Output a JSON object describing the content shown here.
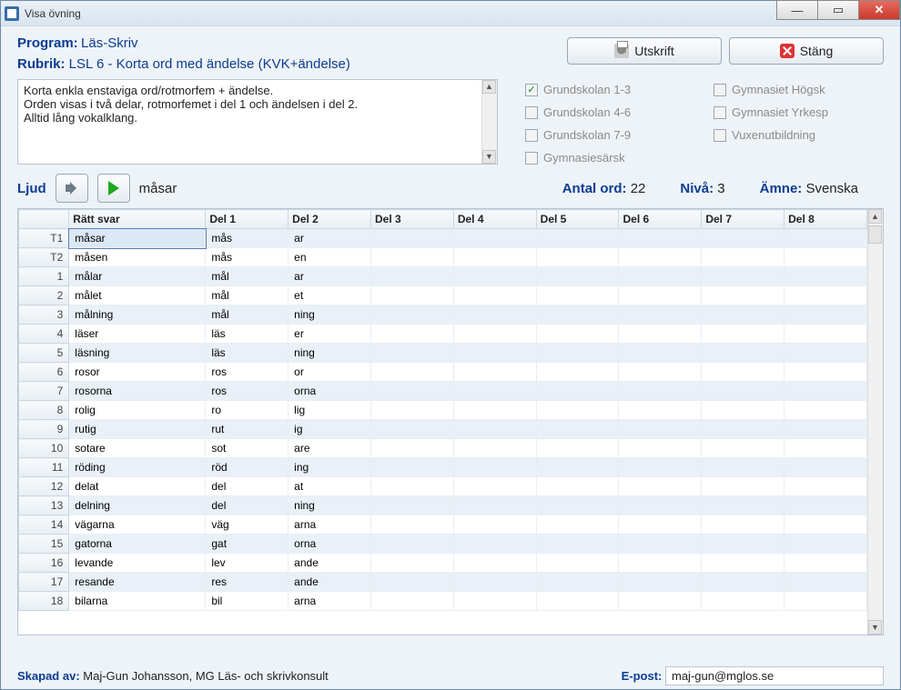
{
  "window": {
    "title": "Visa övning"
  },
  "header": {
    "program_label": "Program:",
    "program_value": "Läs-Skriv",
    "rubrik_label": "Rubrik:",
    "rubrik_value": "LSL 6 - Korta ord med ändelse  (KVK+ändelse)"
  },
  "buttons": {
    "utskrift": "Utskrift",
    "stang": "Stäng"
  },
  "description": "Korta enkla enstaviga ord/rotmorfem + ändelse.\nOrden visas i två delar, rotmorfemet i del 1 och ändelsen i del 2.\nAlltid lång vokalklang.",
  "checkboxes": [
    {
      "label": "Grundskolan 1-3",
      "checked": true
    },
    {
      "label": "Gymnasiet Högsk",
      "checked": false
    },
    {
      "label": "Grundskolan 4-6",
      "checked": false
    },
    {
      "label": "Gymnasiet Yrkesp",
      "checked": false
    },
    {
      "label": "Grundskolan 7-9",
      "checked": false
    },
    {
      "label": "Vuxenutbildning",
      "checked": false
    },
    {
      "label": "Gymnasiesärsk",
      "checked": false
    }
  ],
  "sound": {
    "label": "Ljud",
    "current": "måsar"
  },
  "stats": {
    "antal_label": "Antal ord:",
    "antal_value": "22",
    "niva_label": "Nivå:",
    "niva_value": "3",
    "amne_label": "Ämne:",
    "amne_value": "Svenska"
  },
  "table": {
    "columns": [
      "",
      "Rätt svar",
      "Del 1",
      "Del 2",
      "Del 3",
      "Del 4",
      "Del 5",
      "Del 6",
      "Del 7",
      "Del 8"
    ],
    "col_widths": [
      "28px",
      "76px",
      "46px",
      "46px",
      "46px",
      "46px",
      "46px",
      "46px",
      "46px",
      "46px"
    ],
    "rows": [
      {
        "num": "T1",
        "svar": "måsar",
        "del1": "mås",
        "del2": "ar",
        "selected": true
      },
      {
        "num": "T2",
        "svar": "måsen",
        "del1": "mås",
        "del2": "en"
      },
      {
        "num": "1",
        "svar": "målar",
        "del1": "mål",
        "del2": "ar"
      },
      {
        "num": "2",
        "svar": "målet",
        "del1": "mål",
        "del2": "et"
      },
      {
        "num": "3",
        "svar": "målning",
        "del1": "mål",
        "del2": "ning"
      },
      {
        "num": "4",
        "svar": "läser",
        "del1": "läs",
        "del2": "er"
      },
      {
        "num": "5",
        "svar": "läsning",
        "del1": "läs",
        "del2": "ning"
      },
      {
        "num": "6",
        "svar": "rosor",
        "del1": "ros",
        "del2": "or"
      },
      {
        "num": "7",
        "svar": "rosorna",
        "del1": "ros",
        "del2": "orna"
      },
      {
        "num": "8",
        "svar": "rolig",
        "del1": "ro",
        "del2": "lig"
      },
      {
        "num": "9",
        "svar": "rutig",
        "del1": "rut",
        "del2": "ig"
      },
      {
        "num": "10",
        "svar": "sotare",
        "del1": "sot",
        "del2": "are"
      },
      {
        "num": "11",
        "svar": "röding",
        "del1": "röd",
        "del2": "ing"
      },
      {
        "num": "12",
        "svar": "delat",
        "del1": "del",
        "del2": "at"
      },
      {
        "num": "13",
        "svar": "delning",
        "del1": "del",
        "del2": "ning"
      },
      {
        "num": "14",
        "svar": "vägarna",
        "del1": "väg",
        "del2": "arna"
      },
      {
        "num": "15",
        "svar": "gatorna",
        "del1": "gat",
        "del2": "orna"
      },
      {
        "num": "16",
        "svar": "levande",
        "del1": "lev",
        "del2": "ande"
      },
      {
        "num": "17",
        "svar": "resande",
        "del1": "res",
        "del2": "ande"
      },
      {
        "num": "18",
        "svar": "bilarna",
        "del1": "bil",
        "del2": "arna"
      }
    ]
  },
  "footer": {
    "skapad_label": "Skapad av:",
    "skapad_value": "Maj-Gun Johansson, MG Läs- och skrivkonsult",
    "epost_label": "E-post:",
    "epost_value": "maj-gun@mglos.se"
  },
  "colors": {
    "accent": "#0b3d91",
    "row_alt": "#e9f0f7",
    "border": "#b8c4d1"
  }
}
